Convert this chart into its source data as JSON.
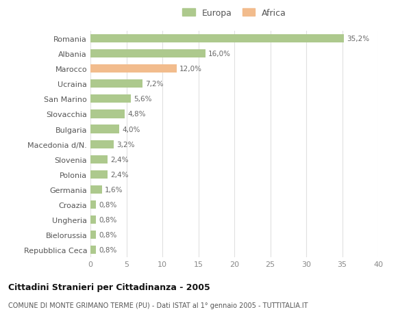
{
  "categories": [
    "Romania",
    "Albania",
    "Marocco",
    "Ucraina",
    "San Marino",
    "Slovacchia",
    "Bulgaria",
    "Macedonia d/N.",
    "Slovenia",
    "Polonia",
    "Germania",
    "Croazia",
    "Ungheria",
    "Bielorussia",
    "Repubblica Ceca"
  ],
  "values": [
    35.2,
    16.0,
    12.0,
    7.2,
    5.6,
    4.8,
    4.0,
    3.2,
    2.4,
    2.4,
    1.6,
    0.8,
    0.8,
    0.8,
    0.8
  ],
  "labels": [
    "35,2%",
    "16,0%",
    "12,0%",
    "7,2%",
    "5,6%",
    "4,8%",
    "4,0%",
    "3,2%",
    "2,4%",
    "2,4%",
    "1,6%",
    "0,8%",
    "0,8%",
    "0,8%",
    "0,8%"
  ],
  "colors": [
    "#adc98d",
    "#adc98d",
    "#f2bc8d",
    "#adc98d",
    "#adc98d",
    "#adc98d",
    "#adc98d",
    "#adc98d",
    "#adc98d",
    "#adc98d",
    "#adc98d",
    "#adc98d",
    "#adc98d",
    "#adc98d",
    "#adc98d"
  ],
  "europa_color": "#adc98d",
  "africa_color": "#f2bc8d",
  "title": "Cittadini Stranieri per Cittadinanza - 2005",
  "subtitle": "COMUNE DI MONTE GRIMANO TERME (PU) - Dati ISTAT al 1° gennaio 2005 - TUTTITALIA.IT",
  "xlim": [
    0,
    40
  ],
  "xticks": [
    0,
    5,
    10,
    15,
    20,
    25,
    30,
    35,
    40
  ],
  "background_color": "#ffffff",
  "grid_color": "#e0e0e0",
  "bar_height": 0.55,
  "legend_europa": "Europa",
  "legend_africa": "Africa"
}
